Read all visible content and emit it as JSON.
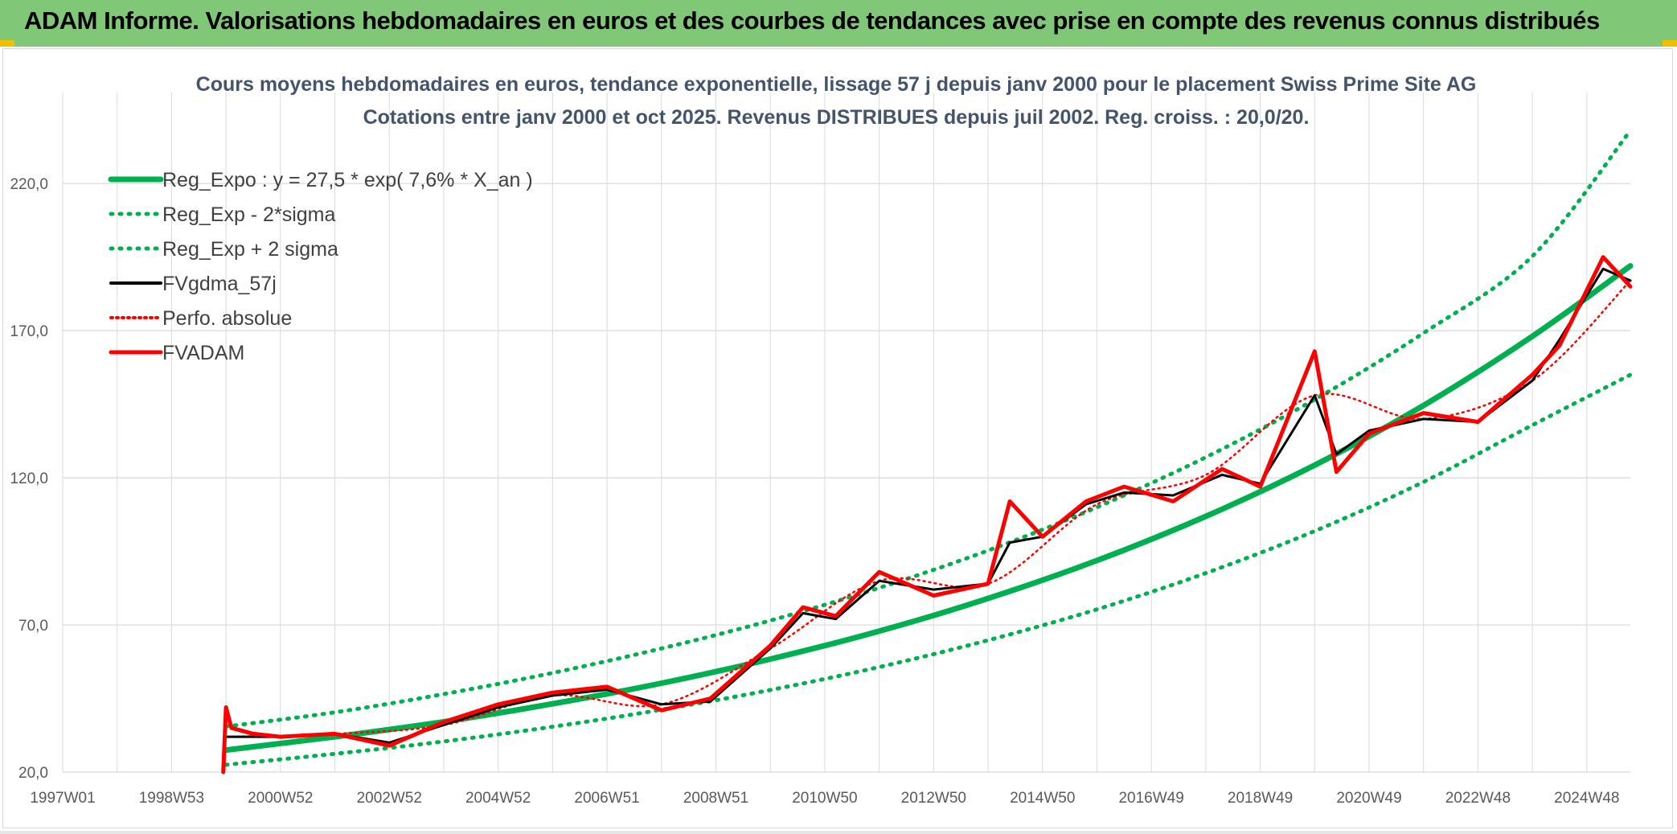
{
  "header": {
    "title": "ADAM Informe. Valorisations hebdomadaires en euros et des courbes de tendances avec prise en compte des revenus connus distribués"
  },
  "chart_data": {
    "type": "line",
    "title": "Cours moyens hebdomadaires en euros, tendance exponentielle, lissage 57 j depuis janv 2000 pour le placement Swiss Prime Site AG",
    "subtitle": "Cotations entre janv 2000 et oct 2025. Revenus DISTRIBUES depuis juil 2002. Reg. croiss. : 20,0/20.",
    "xlabel": "",
    "ylabel": "",
    "ylim": [
      20,
      240
    ],
    "xlim": [
      1997.0,
      2025.8
    ],
    "x_tick_labels": [
      "1997W01",
      "1998W53",
      "2000W52",
      "2002W52",
      "2004W52",
      "2006W51",
      "2008W51",
      "2010W50",
      "2012W50",
      "2014W50",
      "2016W49",
      "2018W49",
      "2020W49",
      "2022W48",
      "2024W48"
    ],
    "y_tick_labels": [
      "20,0",
      "70,0",
      "120,0",
      "170,0",
      "220,0"
    ],
    "y_tick_values": [
      20,
      70,
      120,
      170,
      220
    ],
    "grid": true,
    "legend_position": "top-left",
    "colors": {
      "reg_expo": "#00b050",
      "sigma": "#00b050",
      "fvgdma": "#000000",
      "perfo": "#ff0000",
      "fvadam": "#ff0000",
      "grid": "#d9d9d9",
      "header_bg": "#80c878"
    },
    "series": [
      {
        "name": "Reg_Expo : y = 27,5 * exp( 7,6% *  X_an )",
        "style": "solid-thick",
        "x": [
          2000.0,
          2002.0,
          2004.0,
          2006.0,
          2008.0,
          2010.0,
          2012.0,
          2014.0,
          2016.0,
          2018.0,
          2020.0,
          2022.0,
          2024.0,
          2025.8
        ],
        "values": [
          27.5,
          32.0,
          37.1,
          43.2,
          50.2,
          58.4,
          67.9,
          79.0,
          91.9,
          106.9,
          124.3,
          144.6,
          168.1,
          192.0
        ]
      },
      {
        "name": "Reg_Exp - 2*sigma",
        "style": "dotted",
        "x": [
          2000.0,
          2002.0,
          2004.0,
          2006.0,
          2008.0,
          2010.0,
          2012.0,
          2014.0,
          2016.0,
          2018.0,
          2020.0,
          2022.0,
          2024.0,
          2025.8
        ],
        "values": [
          22.5,
          26.2,
          30.4,
          35.4,
          41.2,
          47.9,
          55.7,
          64.8,
          75.3,
          87.6,
          101.9,
          118.6,
          137.9,
          155.0
        ]
      },
      {
        "name": "Reg_Exp + 2 sigma",
        "style": "dotted",
        "x": [
          2000.0,
          2002.0,
          2004.0,
          2006.0,
          2008.0,
          2010.0,
          2012.0,
          2014.0,
          2016.0,
          2018.0,
          2020.0,
          2022.0,
          2024.0,
          2025.8
        ],
        "values": [
          35.5,
          40.3,
          46.5,
          53.7,
          62.0,
          71.5,
          82.6,
          95.3,
          110.0,
          127.0,
          146.6,
          169.2,
          195.3,
          238.0
        ]
      },
      {
        "name": "FVgdma_57j",
        "style": "solid",
        "x": [
          2000.0,
          2001.0,
          2002.0,
          2003.0,
          2004.0,
          2005.0,
          2006.0,
          2007.0,
          2008.0,
          2008.9,
          2010.0,
          2010.6,
          2011.2,
          2012.0,
          2013.0,
          2014.0,
          2014.4,
          2015.0,
          2015.8,
          2016.5,
          2017.4,
          2018.3,
          2019.0,
          2020.0,
          2020.4,
          2021.0,
          2022.0,
          2023.0,
          2024.0,
          2024.5,
          2025.3,
          2025.8
        ],
        "values": [
          32,
          32,
          33,
          30,
          36,
          42,
          46,
          48,
          43,
          44,
          62,
          74,
          72,
          85,
          82,
          84,
          98,
          100,
          111,
          115,
          114,
          121,
          118,
          148,
          128,
          136,
          140,
          139,
          153,
          167,
          191,
          187
        ]
      },
      {
        "name": "Perfo. absolue",
        "style": "dotted",
        "x": [
          2000.0,
          2002.0,
          2004.0,
          2006.0,
          2008.0,
          2010.0,
          2012.0,
          2014.0,
          2016.0,
          2018.0,
          2020.0,
          2022.0,
          2024.0,
          2025.8
        ],
        "values": [
          32,
          33,
          36,
          46,
          43,
          62,
          85,
          84,
          111,
          121,
          148,
          140,
          153,
          187
        ]
      },
      {
        "name": "FVADAM",
        "style": "solid-thick",
        "x": [
          1999.95,
          2000.0,
          2000.1,
          2000.5,
          2001.0,
          2002.0,
          2003.0,
          2004.0,
          2005.0,
          2006.0,
          2007.0,
          2008.0,
          2008.9,
          2010.0,
          2010.6,
          2011.2,
          2012.0,
          2013.0,
          2014.0,
          2014.4,
          2015.0,
          2015.8,
          2016.5,
          2017.4,
          2018.3,
          2019.0,
          2020.0,
          2020.4,
          2021.0,
          2022.0,
          2023.0,
          2024.0,
          2024.5,
          2025.3,
          2025.8
        ],
        "values": [
          20,
          42,
          35,
          33,
          32,
          33,
          29,
          37,
          43,
          47,
          49,
          41,
          45,
          63,
          76,
          73,
          88,
          80,
          84,
          112,
          100,
          112,
          117,
          112,
          123,
          117,
          163,
          122,
          135,
          142,
          139,
          155,
          165,
          195,
          185
        ]
      }
    ]
  }
}
